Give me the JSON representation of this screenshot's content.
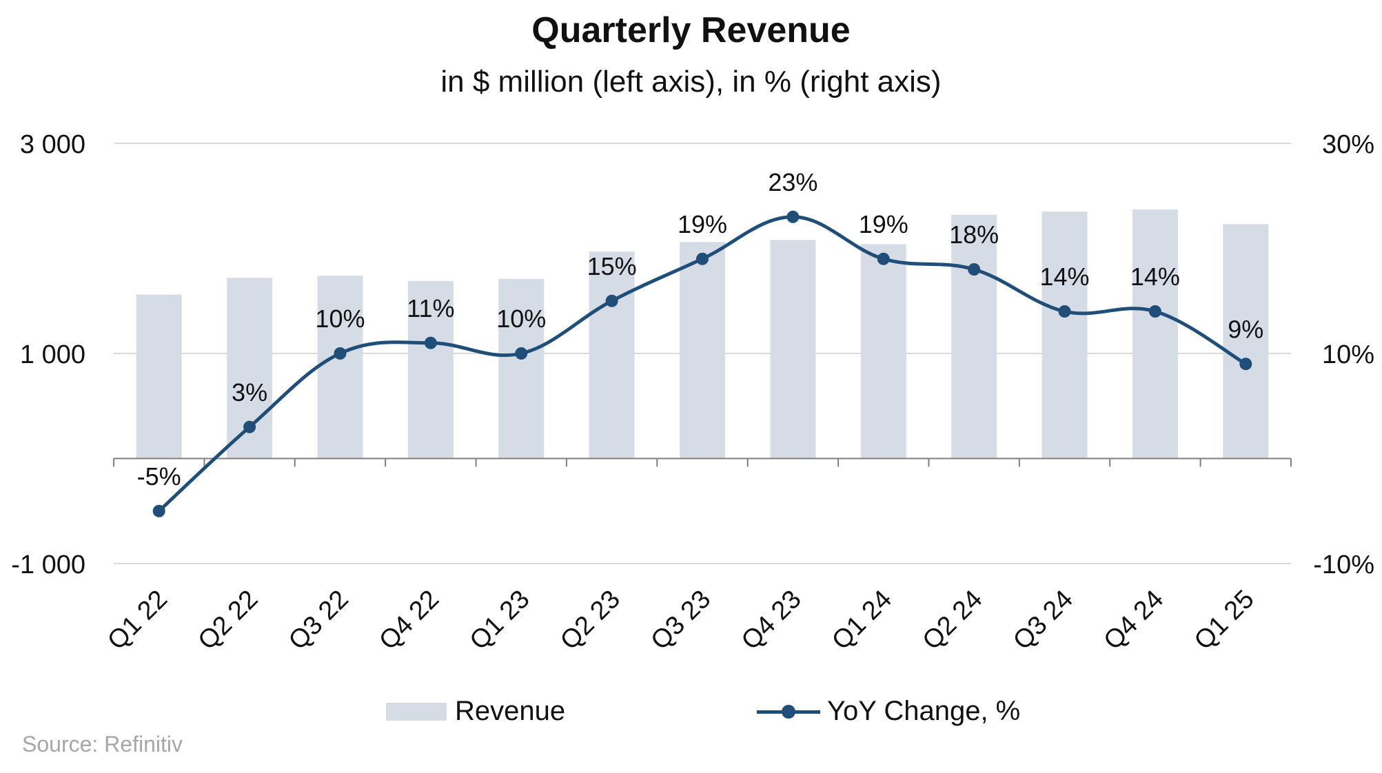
{
  "header": {
    "title": "Quarterly Revenue",
    "subtitle": "in $ million (left axis), in % (right axis)"
  },
  "footer": {
    "source": "Source: Refinitiv"
  },
  "legend": {
    "bar_label": "Revenue",
    "line_label": "YoY Change, %"
  },
  "colors": {
    "bar": "#d6dce5",
    "line": "#1f4e79",
    "grid": "#d9d9d9",
    "axis": "#7f7f7f"
  },
  "chart_data": {
    "type": "bar",
    "title": "Quarterly Revenue",
    "subtitle": "in $ million (left axis), in % (right axis)",
    "categories": [
      "Q1 22",
      "Q2 22",
      "Q3 22",
      "Q4 22",
      "Q1 23",
      "Q2 23",
      "Q3 23",
      "Q4 23",
      "Q1 24",
      "Q2 24",
      "Q3 24",
      "Q4 24",
      "Q1 25"
    ],
    "series": [
      {
        "name": "Revenue",
        "type": "bar",
        "axis": "left",
        "values": [
          1560,
          1720,
          1740,
          1690,
          1710,
          1970,
          2060,
          2080,
          2040,
          2320,
          2350,
          2370,
          2230
        ]
      },
      {
        "name": "YoY Change, %",
        "type": "line",
        "axis": "right",
        "values": [
          -5,
          3,
          10,
          11,
          10,
          15,
          19,
          23,
          19,
          18,
          14,
          14,
          9
        ],
        "labels": [
          "-5%",
          "3%",
          "10%",
          "11%",
          "10%",
          "15%",
          "19%",
          "23%",
          "19%",
          "18%",
          "14%",
          "14%",
          "9%"
        ]
      }
    ],
    "y_left": {
      "ylim": [
        -1000,
        3000
      ],
      "ticks": [
        3000,
        1000,
        -1000
      ],
      "tick_labels": [
        "3 000",
        "1 000",
        "-1 000"
      ]
    },
    "y_right": {
      "ylim": [
        -10,
        30
      ],
      "ticks": [
        30,
        10,
        -10
      ],
      "tick_labels": [
        "30%",
        "10%",
        "-10%"
      ]
    },
    "grid": true,
    "legend_position": "bottom"
  }
}
